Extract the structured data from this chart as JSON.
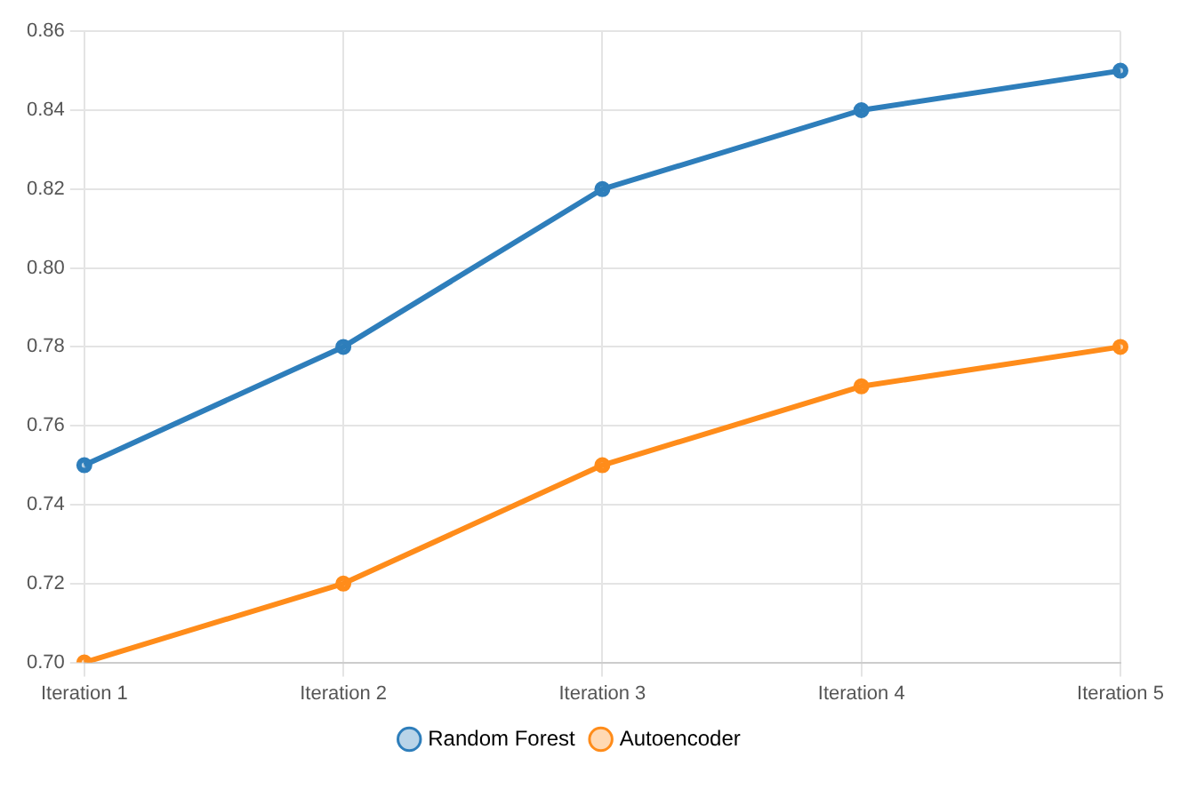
{
  "chart_data": {
    "type": "line",
    "categories": [
      "Iteration 1",
      "Iteration 2",
      "Iteration 3",
      "Iteration 4",
      "Iteration 5"
    ],
    "series": [
      {
        "name": "Random Forest",
        "color": "#2e7ebb",
        "values": [
          0.75,
          0.78,
          0.82,
          0.84,
          0.85
        ]
      },
      {
        "name": "Autoencoder",
        "color": "#ff8c1a",
        "values": [
          0.7,
          0.72,
          0.75,
          0.77,
          0.78
        ]
      }
    ],
    "ylim": [
      0.7,
      0.86
    ],
    "yticks": [
      {
        "value": 0.7,
        "label": "0.70"
      },
      {
        "value": 0.72,
        "label": "0.72"
      },
      {
        "value": 0.74,
        "label": "0.74"
      },
      {
        "value": 0.76,
        "label": "0.76"
      },
      {
        "value": 0.78,
        "label": "0.78"
      },
      {
        "value": 0.8,
        "label": "0.80"
      },
      {
        "value": 0.82,
        "label": "0.82"
      },
      {
        "value": 0.84,
        "label": "0.84"
      },
      {
        "value": 0.86,
        "label": "0.86"
      }
    ],
    "grid": true,
    "legend": "bottom",
    "marker": "circle",
    "line_style": "solid"
  }
}
